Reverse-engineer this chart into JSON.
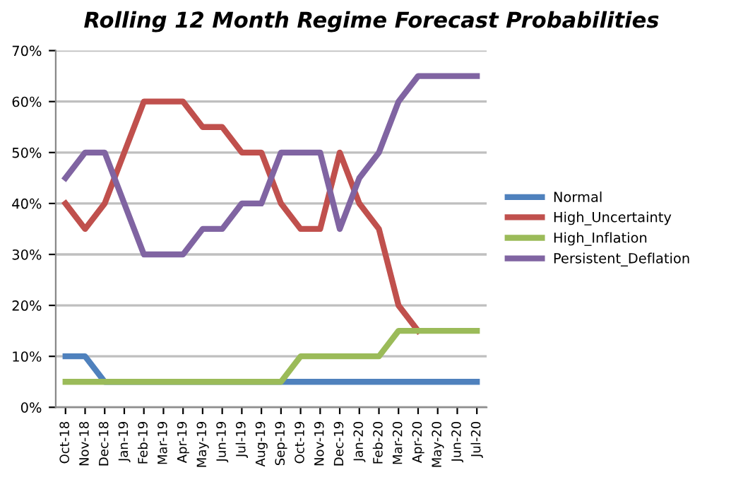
{
  "chart_data": {
    "type": "line",
    "title": "Rolling 12 Month Regime Forecast Probabilities",
    "categories": [
      "Oct-18",
      "Nov-18",
      "Dec-18",
      "Jan-19",
      "Feb-19",
      "Mar-19",
      "Apr-19",
      "May-19",
      "Jun-19",
      "Jul-19",
      "Aug-19",
      "Sep-19",
      "Oct-19",
      "Nov-19",
      "Dec-19",
      "Jan-20",
      "Feb-20",
      "Mar-20",
      "Apr-20",
      "May-20",
      "Jun-20",
      "Jul-20"
    ],
    "series": [
      {
        "name": "Normal",
        "color": "#4f81bd",
        "values": [
          10,
          10,
          5,
          5,
          5,
          5,
          5,
          5,
          5,
          5,
          5,
          5,
          5,
          5,
          5,
          5,
          5,
          5,
          5,
          5,
          5,
          5
        ]
      },
      {
        "name": "High_Uncertainty",
        "color": "#c0504d",
        "values": [
          40,
          35,
          40,
          50,
          60,
          60,
          60,
          55,
          55,
          50,
          50,
          40,
          35,
          35,
          50,
          40,
          35,
          20,
          15,
          null,
          null,
          null
        ]
      },
      {
        "name": "High_Inflation",
        "color": "#9bbb59",
        "values": [
          5,
          5,
          5,
          5,
          5,
          5,
          5,
          5,
          5,
          5,
          5,
          5,
          10,
          10,
          10,
          10,
          10,
          15,
          15,
          15,
          15,
          15
        ]
      },
      {
        "name": "Persistent_Deflation",
        "color": "#8064a2",
        "values": [
          45,
          50,
          50,
          40,
          30,
          30,
          30,
          35,
          35,
          40,
          40,
          50,
          50,
          50,
          35,
          45,
          50,
          60,
          65,
          65,
          65,
          65
        ]
      }
    ],
    "ylim": [
      0,
      70
    ],
    "yticks": [
      {
        "value": 0,
        "label": "0%"
      },
      {
        "value": 10,
        "label": "10%"
      },
      {
        "value": 20,
        "label": "20%"
      },
      {
        "value": 30,
        "label": "30%"
      },
      {
        "value": 40,
        "label": "40%"
      },
      {
        "value": 50,
        "label": "50%"
      },
      {
        "value": 60,
        "label": "60%"
      },
      {
        "value": 70,
        "label": "70%"
      }
    ],
    "grid": "y",
    "legend": "right",
    "marker": "none",
    "line_style": "solid"
  }
}
